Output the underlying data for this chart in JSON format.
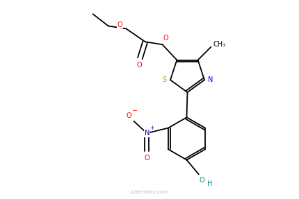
{
  "bg_color": "#ffffff",
  "fig_width": 4.31,
  "fig_height": 2.87,
  "dpi": 100,
  "bond_color": "#000000",
  "bond_lw": 1.3,
  "S_color": "#aaaa00",
  "N_color": "#0000cc",
  "O_color": "#ff0000",
  "OH_color": "#008888",
  "label_fontsize": 7.0,
  "watermark": "jchemistry.com",
  "watermark_color": "#bbbbbb",
  "watermark_fontsize": 5,
  "xlim": [
    0,
    8.62
  ],
  "ylim": [
    0,
    5.74
  ]
}
